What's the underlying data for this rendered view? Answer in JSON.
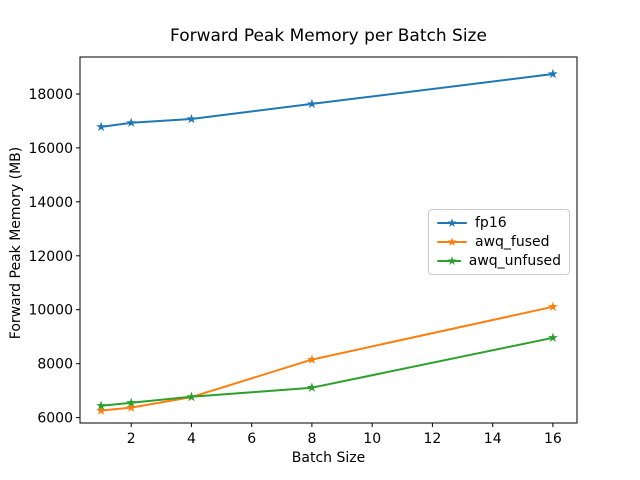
{
  "figure": {
    "background": "#ffffff",
    "frame_color": "#000000"
  },
  "chart_data": {
    "type": "line",
    "title": "Forward Peak Memory per Batch Size",
    "xlabel": "Batch Size",
    "ylabel": "Forward Peak Memory (MB)",
    "x": [
      1,
      2,
      4,
      8,
      16
    ],
    "series": [
      {
        "name": "fp16",
        "color": "#1f77b4",
        "marker": "star",
        "values": [
          16780,
          16930,
          17070,
          17630,
          18740
        ]
      },
      {
        "name": "awq_fused",
        "color": "#ff7f0e",
        "marker": "star",
        "values": [
          6260,
          6370,
          6760,
          8150,
          10110
        ]
      },
      {
        "name": "awq_unfused",
        "color": "#2ca02c",
        "marker": "star",
        "values": [
          6440,
          6550,
          6770,
          7110,
          8960
        ]
      }
    ],
    "xticks": [
      2,
      4,
      6,
      8,
      10,
      12,
      14,
      16
    ],
    "yticks": [
      6000,
      8000,
      10000,
      12000,
      14000,
      16000,
      18000
    ],
    "xlim": [
      0.3,
      16.8
    ],
    "ylim": [
      5800,
      19370
    ],
    "grid": false,
    "legend_position": "center-right"
  }
}
